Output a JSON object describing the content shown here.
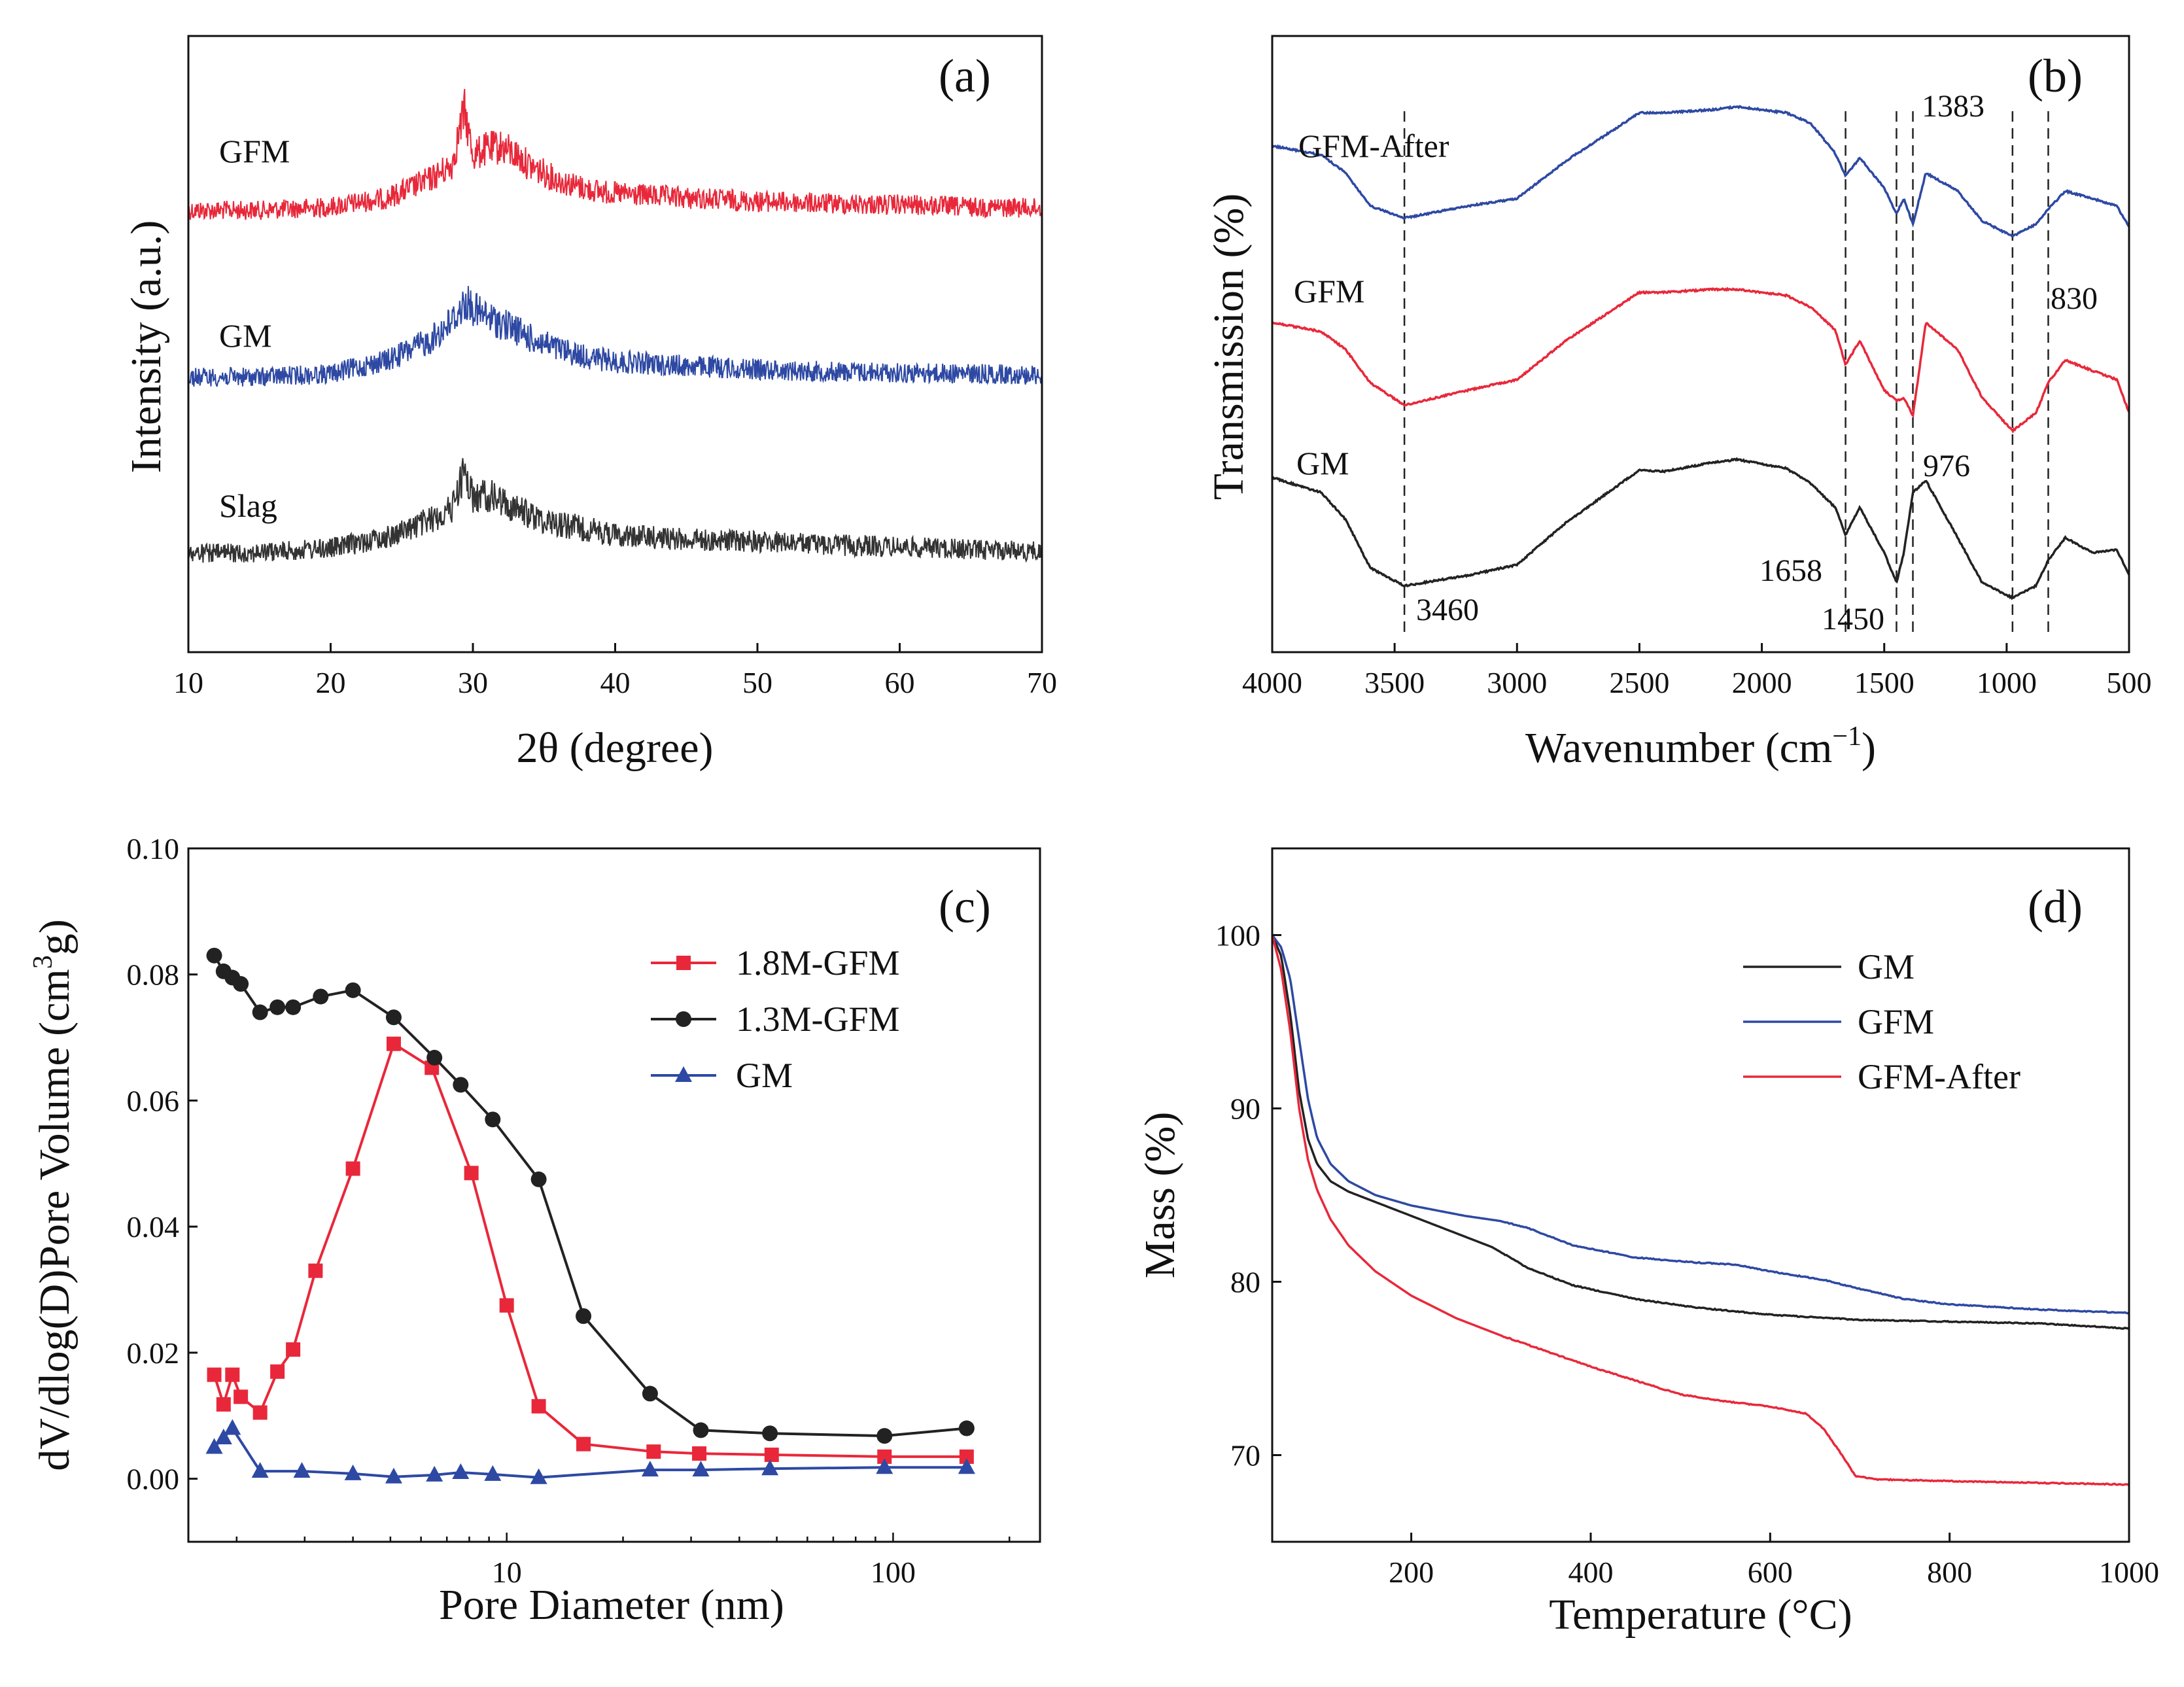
{
  "chart_data": [
    {
      "id": "a",
      "type": "line",
      "panel_label": "(a)",
      "xlabel": "2θ (degree)",
      "ylabel": "Intensity (a.u.)",
      "xlim": [
        10,
        70
      ],
      "xticks": [
        10,
        20,
        30,
        40,
        50,
        60,
        70
      ],
      "xtick_labels": [
        "10",
        "20",
        "30",
        "40",
        "50",
        "60",
        "70"
      ],
      "yticks_shown": false,
      "series": [
        {
          "name": "GFM",
          "label": "GFM",
          "color": "#e8283a",
          "offset": 2.0,
          "x": [
            10,
            15,
            20,
            24,
            27,
            28.5,
            29.4,
            30,
            31,
            32,
            33,
            34,
            36,
            38,
            40,
            45,
            50,
            55,
            60,
            65,
            70
          ],
          "y": [
            0.05,
            0.05,
            0.08,
            0.16,
            0.33,
            0.45,
            0.95,
            0.55,
            0.6,
            0.62,
            0.55,
            0.45,
            0.32,
            0.24,
            0.2,
            0.16,
            0.13,
            0.11,
            0.1,
            0.08,
            0.07
          ]
        },
        {
          "name": "GM",
          "label": "GM",
          "color": "#2e49a3",
          "offset": 1.0,
          "x": [
            10,
            15,
            20,
            24,
            27,
            28.5,
            29.5,
            30.5,
            31.5,
            33,
            34,
            36,
            38,
            40,
            45,
            50,
            55,
            60,
            65,
            70
          ],
          "y": [
            0.05,
            0.05,
            0.08,
            0.2,
            0.38,
            0.55,
            0.72,
            0.62,
            0.56,
            0.48,
            0.4,
            0.3,
            0.23,
            0.19,
            0.15,
            0.12,
            0.1,
            0.09,
            0.08,
            0.07
          ]
        },
        {
          "name": "Slag",
          "label": "Slag",
          "color": "#333333",
          "offset": 0.0,
          "x": [
            10,
            15,
            20,
            24,
            27,
            28.5,
            29.4,
            30,
            31,
            32,
            33,
            35,
            38,
            40,
            45,
            50,
            55,
            60,
            65,
            70
          ],
          "y": [
            0.05,
            0.06,
            0.1,
            0.2,
            0.35,
            0.45,
            0.8,
            0.55,
            0.58,
            0.52,
            0.45,
            0.35,
            0.27,
            0.22,
            0.18,
            0.16,
            0.13,
            0.11,
            0.09,
            0.07
          ]
        }
      ]
    },
    {
      "id": "b",
      "type": "line",
      "panel_label": "(b)",
      "xlabel": "Wavenumber (cm",
      "xlabel_sup": "−1",
      "xlabel_end": ")",
      "ylabel": "Transmission (%)",
      "xlim": [
        4000,
        500
      ],
      "xticks": [
        4000,
        3500,
        3000,
        2500,
        2000,
        1500,
        1000,
        500
      ],
      "xtick_labels": [
        "4000",
        "3500",
        "3000",
        "2500",
        "2000",
        "1500",
        "1000",
        "500"
      ],
      "yticks_shown": false,
      "series": [
        {
          "name": "GFM-After",
          "label": "GFM-After",
          "color": "#2e49a3",
          "offset": 2.0,
          "x": [
            4000,
            3800,
            3700,
            3600,
            3460,
            3200,
            3000,
            2800,
            2500,
            2400,
            2200,
            2100,
            1900,
            1800,
            1700,
            1658,
            1600,
            1500,
            1450,
            1420,
            1383,
            1330,
            1200,
            1100,
            976,
            880,
            830,
            760,
            650,
            550,
            500
          ],
          "y": [
            0.9,
            0.84,
            0.72,
            0.5,
            0.42,
            0.5,
            0.55,
            0.8,
            1.12,
            1.12,
            1.14,
            1.16,
            1.12,
            1.05,
            0.85,
            0.7,
            0.82,
            0.62,
            0.45,
            0.55,
            0.38,
            0.72,
            0.6,
            0.4,
            0.3,
            0.38,
            0.48,
            0.6,
            0.55,
            0.5,
            0.36
          ]
        },
        {
          "name": "GFM",
          "label": "GFM",
          "color": "#e8283a",
          "offset": 1.0,
          "x": [
            4000,
            3800,
            3700,
            3600,
            3460,
            3200,
            3000,
            2800,
            2500,
            2400,
            2200,
            2100,
            1900,
            1800,
            1700,
            1658,
            1600,
            1500,
            1450,
            1420,
            1383,
            1330,
            1200,
            1100,
            976,
            880,
            830,
            760,
            650,
            550,
            500
          ],
          "y": [
            0.9,
            0.84,
            0.72,
            0.5,
            0.35,
            0.45,
            0.52,
            0.78,
            1.1,
            1.1,
            1.12,
            1.12,
            1.08,
            1.0,
            0.85,
            0.62,
            0.78,
            0.45,
            0.38,
            0.4,
            0.28,
            0.9,
            0.72,
            0.4,
            0.18,
            0.3,
            0.5,
            0.65,
            0.58,
            0.52,
            0.3
          ]
        },
        {
          "name": "GM",
          "label": "GM",
          "color": "#222222",
          "offset": 0.0,
          "x": [
            4000,
            3800,
            3700,
            3600,
            3460,
            3200,
            3000,
            2800,
            2500,
            2400,
            2200,
            2100,
            1900,
            1800,
            1700,
            1658,
            1600,
            1500,
            1450,
            1420,
            1383,
            1330,
            1200,
            1100,
            976,
            880,
            830,
            760,
            650,
            550,
            500
          ],
          "y": [
            1.0,
            0.9,
            0.72,
            0.4,
            0.28,
            0.35,
            0.42,
            0.7,
            1.05,
            1.04,
            1.1,
            1.12,
            1.06,
            0.96,
            0.8,
            0.62,
            0.8,
            0.5,
            0.3,
            0.5,
            0.9,
            0.98,
            0.6,
            0.3,
            0.2,
            0.28,
            0.45,
            0.6,
            0.5,
            0.52,
            0.35
          ]
        }
      ],
      "annotations": [
        "3460",
        "1658",
        "1450",
        "1383",
        "976",
        "830"
      ],
      "marker_lines": [
        3460,
        1658,
        1450,
        1383,
        976,
        830
      ]
    },
    {
      "id": "c",
      "type": "line",
      "panel_label": "(c)",
      "xlabel": "Pore Diameter (nm)",
      "ylabel": "dV/dlog(D)Pore Volume (cm",
      "ylabel_sup": "3",
      "ylabel_end": "g)",
      "xscale": "log",
      "xlim": [
        1.5,
        240
      ],
      "ylim": [
        -0.01,
        0.1
      ],
      "xticks": [
        10,
        100
      ],
      "xtick_labels": [
        "10",
        "100"
      ],
      "yticks": [
        0.0,
        0.02,
        0.04,
        0.06,
        0.08,
        0.1
      ],
      "ytick_labels": [
        "0.00",
        "0.02",
        "0.04",
        "0.06",
        "0.08",
        "0.10"
      ],
      "legend": {
        "placement": "top-right",
        "entries": [
          "1.8M-GFM",
          "1.3M-GFM",
          "GM"
        ]
      },
      "series": [
        {
          "name": "1.8M-GFM",
          "color": "#e8283a",
          "marker": "square",
          "x": [
            1.75,
            1.85,
            1.95,
            2.05,
            2.3,
            2.55,
            2.8,
            3.2,
            4.0,
            5.1,
            6.4,
            8.1,
            10.0,
            12.1,
            15.8,
            24.0,
            31.5,
            48.5,
            95.0,
            155.0
          ],
          "y": [
            0.0165,
            0.0118,
            0.0165,
            0.013,
            0.0105,
            0.017,
            0.0205,
            0.033,
            0.0492,
            0.069,
            0.0652,
            0.0485,
            0.0275,
            0.0115,
            0.0055,
            0.0043,
            0.004,
            0.0038,
            0.0035,
            0.0035
          ]
        },
        {
          "name": "1.3M-GFM",
          "color": "#222222",
          "marker": "circle",
          "x": [
            1.75,
            1.85,
            1.95,
            2.05,
            2.3,
            2.55,
            2.8,
            3.3,
            4.0,
            5.1,
            6.5,
            7.6,
            9.2,
            12.1,
            15.8,
            23.5,
            31.8,
            48.0,
            95.0,
            155.0
          ],
          "y": [
            0.083,
            0.0805,
            0.0795,
            0.0785,
            0.074,
            0.0748,
            0.0748,
            0.0765,
            0.0775,
            0.0732,
            0.0668,
            0.0625,
            0.057,
            0.0475,
            0.0258,
            0.0135,
            0.0077,
            0.0072,
            0.0068,
            0.008
          ]
        },
        {
          "name": "GM",
          "color": "#2e49a3",
          "marker": "triangle",
          "x": [
            1.75,
            1.85,
            1.95,
            2.3,
            2.95,
            4.0,
            5.1,
            6.5,
            7.6,
            9.2,
            12.1,
            23.5,
            31.8,
            48.0,
            95.0,
            155.0
          ],
          "y": [
            0.005,
            0.0065,
            0.008,
            0.0012,
            0.0012,
            0.0008,
            0.0003,
            0.0006,
            0.001,
            0.0007,
            0.0002,
            0.0014,
            0.0014,
            0.0016,
            0.0018,
            0.0018
          ]
        }
      ]
    },
    {
      "id": "d",
      "type": "line",
      "panel_label": "(d)",
      "xlabel": "Temperature (°C)",
      "ylabel": "Mass (%)",
      "xlim": [
        45,
        1000
      ],
      "ylim": [
        65,
        105
      ],
      "xticks": [
        200,
        400,
        600,
        800,
        1000
      ],
      "xtick_labels": [
        "200",
        "400",
        "600",
        "800",
        "1000"
      ],
      "yticks": [
        70,
        80,
        90,
        100
      ],
      "ytick_labels": [
        "70",
        "80",
        "90",
        "100"
      ],
      "legend": {
        "placement": "top-right",
        "entries": [
          "GM",
          "GFM",
          "GFM-After"
        ]
      },
      "series": [
        {
          "name": "GM",
          "color": "#222222",
          "x": [
            45,
            55,
            65,
            75,
            85,
            95,
            110,
            130,
            160,
            200,
            250,
            290,
            330,
            380,
            450,
            520,
            600,
            700,
            800,
            900,
            1000
          ],
          "y": [
            100,
            98.8,
            95.5,
            91.0,
            88.2,
            86.8,
            85.8,
            85.2,
            84.6,
            83.8,
            82.8,
            82.0,
            80.8,
            79.8,
            79.0,
            78.5,
            78.1,
            77.8,
            77.7,
            77.6,
            77.3
          ]
        },
        {
          "name": "GFM",
          "color": "#2e49a3",
          "x": [
            45,
            55,
            65,
            75,
            85,
            95,
            110,
            130,
            160,
            200,
            260,
            300,
            330,
            380,
            450,
            520,
            560,
            600,
            660,
            700,
            750,
            800,
            900,
            1000
          ],
          "y": [
            100,
            99.3,
            97.5,
            94.0,
            90.5,
            88.3,
            86.8,
            85.8,
            85.0,
            84.4,
            83.8,
            83.5,
            83.1,
            82.1,
            81.4,
            81.1,
            81.0,
            80.6,
            80.1,
            79.6,
            79.0,
            78.7,
            78.4,
            78.2
          ]
        },
        {
          "name": "GFM-After",
          "color": "#e8283a",
          "x": [
            45,
            55,
            65,
            75,
            85,
            95,
            110,
            130,
            160,
            200,
            250,
            300,
            350,
            400,
            450,
            500,
            550,
            600,
            640,
            660,
            680,
            695,
            720,
            800,
            900,
            1000
          ],
          "y": [
            100,
            98.0,
            94.5,
            90.0,
            87.0,
            85.3,
            83.6,
            82.1,
            80.6,
            79.2,
            77.9,
            76.9,
            76.0,
            75.1,
            74.3,
            73.5,
            73.1,
            72.8,
            72.4,
            71.5,
            70.0,
            68.8,
            68.6,
            68.5,
            68.4,
            68.3
          ]
        }
      ]
    }
  ]
}
